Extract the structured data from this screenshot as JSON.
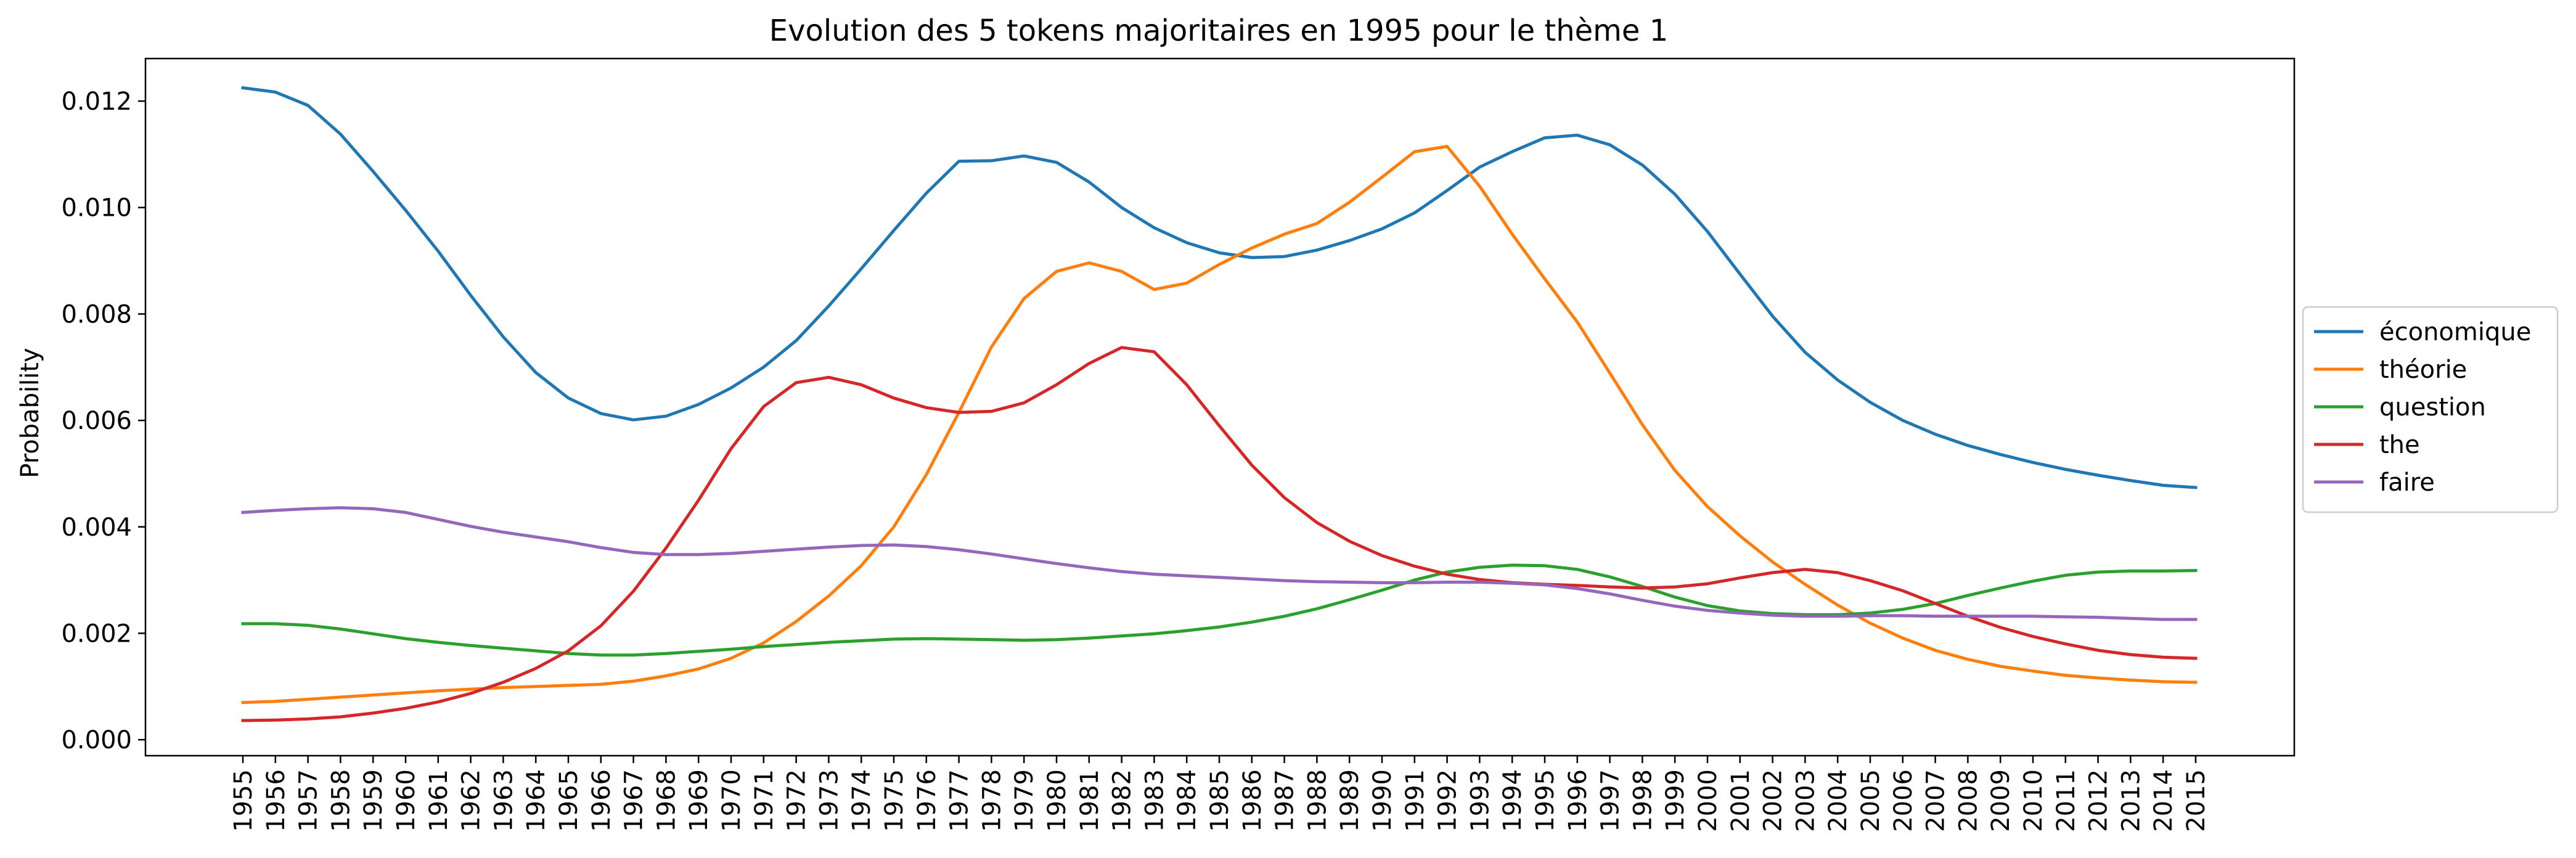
{
  "chart_data": {
    "type": "line",
    "title": "Evolution des 5 tokens majoritaires en 1995 pour le thème 1",
    "xlabel": "",
    "ylabel": "Probability",
    "ylim": [
      -0.0003,
      0.0128
    ],
    "yticks": [
      0.0,
      0.002,
      0.004,
      0.006,
      0.008,
      0.01,
      0.012
    ],
    "ytick_labels": [
      "0.000",
      "0.002",
      "0.004",
      "0.006",
      "0.008",
      "0.010",
      "0.012"
    ],
    "legend_position": "center-right-outside",
    "grid": false,
    "x": [
      "1955",
      "1956",
      "1957",
      "1958",
      "1959",
      "1960",
      "1961",
      "1962",
      "1963",
      "1964",
      "1965",
      "1966",
      "1967",
      "1968",
      "1969",
      "1970",
      "1971",
      "1972",
      "1973",
      "1974",
      "1975",
      "1976",
      "1977",
      "1978",
      "1979",
      "1980",
      "1981",
      "1982",
      "1983",
      "1984",
      "1985",
      "1986",
      "1987",
      "1988",
      "1989",
      "1990",
      "1991",
      "1992",
      "1993",
      "1994",
      "1995",
      "1996",
      "1997",
      "1998",
      "1999",
      "2000",
      "2001",
      "2002",
      "2003",
      "2004",
      "2005",
      "2006",
      "2007",
      "2008",
      "2009",
      "2010",
      "2011",
      "2012",
      "2013",
      "2014",
      "2015"
    ],
    "series": [
      {
        "name": "économique",
        "color": "#1f77b4",
        "values": [
          0.01225,
          0.01217,
          0.01192,
          0.01138,
          0.01068,
          0.00995,
          0.00918,
          0.00835,
          0.00757,
          0.0069,
          0.00642,
          0.00613,
          0.00601,
          0.00608,
          0.0063,
          0.00661,
          0.007,
          0.0075,
          0.00815,
          0.00885,
          0.00957,
          0.01027,
          0.01087,
          0.01088,
          0.01097,
          0.01085,
          0.01048,
          0.01,
          0.00962,
          0.00934,
          0.00915,
          0.00906,
          0.00908,
          0.0092,
          0.00938,
          0.0096,
          0.0099,
          0.01032,
          0.01076,
          0.01105,
          0.01131,
          0.01136,
          0.01118,
          0.0108,
          0.01025,
          0.00955,
          0.00875,
          0.00796,
          0.00728,
          0.00676,
          0.00634,
          0.006,
          0.00574,
          0.00553,
          0.00536,
          0.00521,
          0.00508,
          0.00497,
          0.00487,
          0.00478,
          0.00474
        ]
      },
      {
        "name": "théorie",
        "color": "#ff7f0e",
        "values": [
          0.0007,
          0.00072,
          0.00076,
          0.0008,
          0.00084,
          0.00088,
          0.00092,
          0.00095,
          0.00098,
          0.001,
          0.00102,
          0.00104,
          0.0011,
          0.0012,
          0.00133,
          0.00153,
          0.00182,
          0.00222,
          0.0027,
          0.00327,
          0.004,
          0.00498,
          0.00615,
          0.00738,
          0.00829,
          0.0088,
          0.00896,
          0.0088,
          0.00846,
          0.00858,
          0.00893,
          0.00924,
          0.0095,
          0.0097,
          0.0101,
          0.01057,
          0.01105,
          0.01115,
          0.0104,
          0.0095,
          0.00866,
          0.00785,
          0.00689,
          0.00592,
          0.00506,
          0.00438,
          0.00383,
          0.00334,
          0.00292,
          0.00253,
          0.00219,
          0.00191,
          0.00168,
          0.00151,
          0.00138,
          0.00129,
          0.00121,
          0.00116,
          0.00112,
          0.00109,
          0.00108
        ]
      },
      {
        "name": "question",
        "color": "#2ca02c",
        "values": [
          0.00218,
          0.00218,
          0.00215,
          0.00208,
          0.00199,
          0.0019,
          0.00183,
          0.00177,
          0.00172,
          0.00167,
          0.00162,
          0.00159,
          0.00159,
          0.00162,
          0.00166,
          0.0017,
          0.00175,
          0.00179,
          0.00183,
          0.00186,
          0.00189,
          0.0019,
          0.00189,
          0.00188,
          0.00187,
          0.00188,
          0.00191,
          0.00195,
          0.00199,
          0.00205,
          0.00212,
          0.00221,
          0.00232,
          0.00246,
          0.00263,
          0.00281,
          0.003,
          0.00315,
          0.00324,
          0.00328,
          0.00327,
          0.0032,
          0.00306,
          0.00288,
          0.00268,
          0.00252,
          0.00242,
          0.00237,
          0.00235,
          0.00235,
          0.00238,
          0.00245,
          0.00256,
          0.00271,
          0.00285,
          0.00298,
          0.00309,
          0.00315,
          0.00317,
          0.00317,
          0.00318
        ]
      },
      {
        "name": "the",
        "color": "#d62728",
        "values": [
          0.00036,
          0.00037,
          0.00039,
          0.00043,
          0.0005,
          0.00059,
          0.00071,
          0.00087,
          0.00108,
          0.00134,
          0.00167,
          0.00214,
          0.00279,
          0.0036,
          0.0045,
          0.00547,
          0.00626,
          0.00671,
          0.00681,
          0.00667,
          0.00642,
          0.00624,
          0.00615,
          0.00617,
          0.00633,
          0.00667,
          0.00707,
          0.00737,
          0.00729,
          0.00667,
          0.0059,
          0.00516,
          0.00455,
          0.00408,
          0.00373,
          0.00346,
          0.00326,
          0.00311,
          0.00301,
          0.00295,
          0.00292,
          0.0029,
          0.00287,
          0.00285,
          0.00287,
          0.00293,
          0.00304,
          0.00314,
          0.0032,
          0.00314,
          0.00299,
          0.0028,
          0.00256,
          0.00232,
          0.00211,
          0.00194,
          0.0018,
          0.00168,
          0.0016,
          0.00155,
          0.00153
        ]
      },
      {
        "name": "faire",
        "color": "#9467bd",
        "values": [
          0.00427,
          0.00431,
          0.00434,
          0.00436,
          0.00434,
          0.00427,
          0.00414,
          0.00401,
          0.0039,
          0.00381,
          0.00372,
          0.00361,
          0.00352,
          0.00348,
          0.00348,
          0.0035,
          0.00354,
          0.00358,
          0.00362,
          0.00365,
          0.00366,
          0.00363,
          0.00357,
          0.00349,
          0.0034,
          0.00331,
          0.00323,
          0.00316,
          0.00311,
          0.00308,
          0.00305,
          0.00302,
          0.00299,
          0.00297,
          0.00296,
          0.00295,
          0.00295,
          0.00296,
          0.00296,
          0.00294,
          0.00291,
          0.00284,
          0.00274,
          0.00262,
          0.00251,
          0.00243,
          0.00238,
          0.00234,
          0.00232,
          0.00232,
          0.00233,
          0.00233,
          0.00232,
          0.00232,
          0.00232,
          0.00232,
          0.00231,
          0.0023,
          0.00228,
          0.00226,
          0.00226
        ]
      }
    ]
  }
}
